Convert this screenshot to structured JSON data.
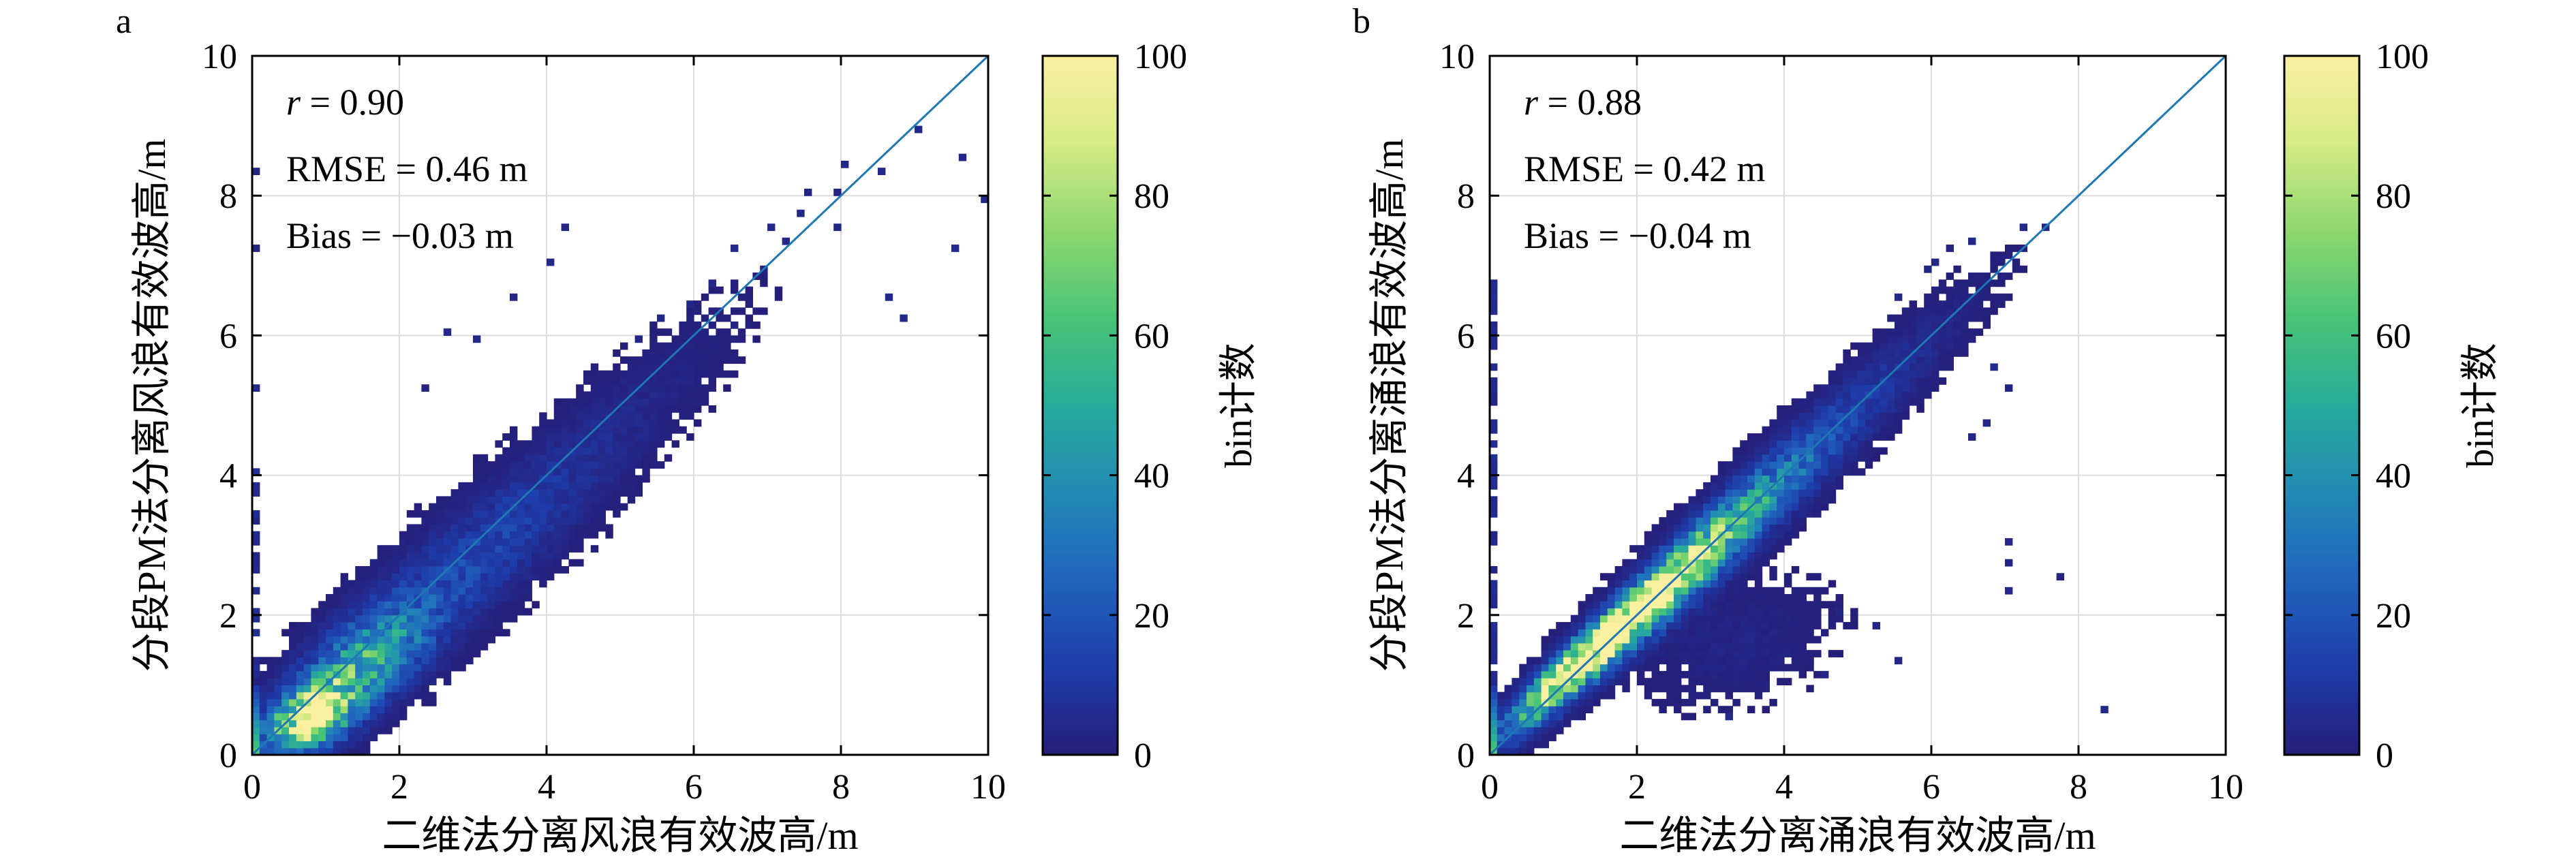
{
  "chart_data": [
    {
      "type": "heatmap",
      "panel_label": "a",
      "xlabel": "二维法分离风浪有效波高/m",
      "ylabel": "分段PM法分离风浪有效波高/m",
      "xlim": [
        0,
        10
      ],
      "ylim": [
        0,
        10
      ],
      "xticks": [
        0,
        2,
        4,
        6,
        8,
        10
      ],
      "yticks": [
        0,
        2,
        4,
        6,
        8,
        10
      ],
      "grid": true,
      "identity_line": true,
      "stats": {
        "r_symbol": "r",
        "r_text": " = 0.90",
        "rmse": "RMSE = 0.46 m",
        "bias": "Bias = −0.03 m"
      },
      "colorbar": {
        "label": "bin计数",
        "range": [
          0,
          100
        ],
        "ticks": [
          0,
          20,
          40,
          60,
          80,
          100
        ],
        "colormap": "parula"
      },
      "density": {
        "core": [
          {
            "x": 0.8,
            "y": 0.55,
            "sx": 0.38,
            "sy": 0.32,
            "rho": 0.45,
            "peak": 100
          },
          {
            "x": 1.55,
            "y": 1.35,
            "sx": 0.55,
            "sy": 0.5,
            "rho": 0.6,
            "peak": 45
          },
          {
            "x": 2.8,
            "y": 2.6,
            "sx": 1.1,
            "sy": 1.0,
            "rho": 0.85,
            "peak": 14
          },
          {
            "x": 4.6,
            "y": 4.4,
            "sx": 1.2,
            "sy": 1.15,
            "rho": 0.9,
            "peak": 4
          }
        ],
        "sparse_tail": [
          [
            5.2,
            5.6
          ],
          [
            5.5,
            6.2
          ],
          [
            5.9,
            6.4
          ],
          [
            6.3,
            6.7
          ],
          [
            6.6,
            7.2
          ],
          [
            7.0,
            7.6
          ],
          [
            7.2,
            7.3
          ],
          [
            7.6,
            8.1
          ],
          [
            7.9,
            8.0
          ],
          [
            8.1,
            8.4
          ],
          [
            8.6,
            8.3
          ],
          [
            9.1,
            8.9
          ],
          [
            9.7,
            8.6
          ],
          [
            9.9,
            7.9
          ],
          [
            9.6,
            7.2
          ],
          [
            8.8,
            6.3
          ],
          [
            8.7,
            6.5
          ],
          [
            7.9,
            7.5
          ],
          [
            7.4,
            7.7
          ],
          [
            6.9,
            6.9
          ],
          [
            4.3,
            7.6
          ],
          [
            4.1,
            7.0
          ],
          [
            3.5,
            6.5
          ],
          [
            2.6,
            6.0
          ],
          [
            2.4,
            5.3
          ],
          [
            3.0,
            5.9
          ],
          [
            5.3,
            5.9
          ],
          [
            7.5,
            8.0
          ]
        ],
        "edge_column": {
          "x": 0.05,
          "y_max": 4.3
        },
        "left_outliers": [
          [
            0.05,
            8.3
          ],
          [
            0.05,
            7.2
          ],
          [
            0.05,
            5.2
          ]
        ]
      }
    },
    {
      "type": "heatmap",
      "panel_label": "b",
      "xlabel": "二维法分离涌浪有效波高/m",
      "ylabel": "分段PM法分离涌浪有效波高/m",
      "xlim": [
        0,
        10
      ],
      "ylim": [
        0,
        10
      ],
      "xticks": [
        0,
        2,
        4,
        6,
        8,
        10
      ],
      "yticks": [
        0,
        2,
        4,
        6,
        8,
        10
      ],
      "grid": true,
      "identity_line": true,
      "stats": {
        "r_symbol": "r",
        "r_text": " = 0.88",
        "rmse": "RMSE = 0.42 m",
        "bias": "Bias = −0.04 m"
      },
      "colorbar": {
        "label": "bin计数",
        "range": [
          0,
          100
        ],
        "ticks": [
          0,
          20,
          40,
          60,
          80,
          100
        ],
        "colormap": "parula"
      },
      "density": {
        "core": [
          {
            "x": 1.2,
            "y": 1.3,
            "sx": 0.6,
            "sy": 0.6,
            "rho": 0.93,
            "peak": 100
          },
          {
            "x": 2.3,
            "y": 2.3,
            "sx": 0.75,
            "sy": 0.75,
            "rho": 0.93,
            "peak": 75
          },
          {
            "x": 3.3,
            "y": 3.3,
            "sx": 0.9,
            "sy": 0.88,
            "rho": 0.92,
            "peak": 32
          },
          {
            "x": 4.8,
            "y": 4.8,
            "sx": 1.0,
            "sy": 1.0,
            "rho": 0.93,
            "peak": 9
          },
          {
            "x": 3.4,
            "y": 1.6,
            "sx": 0.8,
            "sy": 0.55,
            "rho": 0.3,
            "peak": 3
          }
        ],
        "sparse_tail": [
          [
            5.6,
            6.6
          ],
          [
            5.9,
            6.9
          ],
          [
            6.2,
            7.2
          ],
          [
            6.6,
            7.3
          ],
          [
            7.2,
            7.6
          ],
          [
            7.5,
            7.5
          ],
          [
            6.1,
            7.0
          ],
          [
            6.8,
            5.6
          ],
          [
            7.0,
            5.3
          ],
          [
            6.5,
            4.6
          ],
          [
            6.7,
            4.8
          ],
          [
            7.1,
            3.0
          ],
          [
            7.1,
            2.8
          ],
          [
            7.0,
            2.4
          ],
          [
            7.7,
            2.5
          ],
          [
            8.3,
            0.7
          ],
          [
            4.8,
            2.0
          ],
          [
            5.2,
            1.8
          ],
          [
            5.6,
            1.3
          ],
          [
            4.6,
            1.2
          ],
          [
            3.3,
            0.5
          ]
        ],
        "edge_column": {
          "x": 0.05,
          "y_max": 6.8
        },
        "left_outliers": []
      }
    }
  ]
}
